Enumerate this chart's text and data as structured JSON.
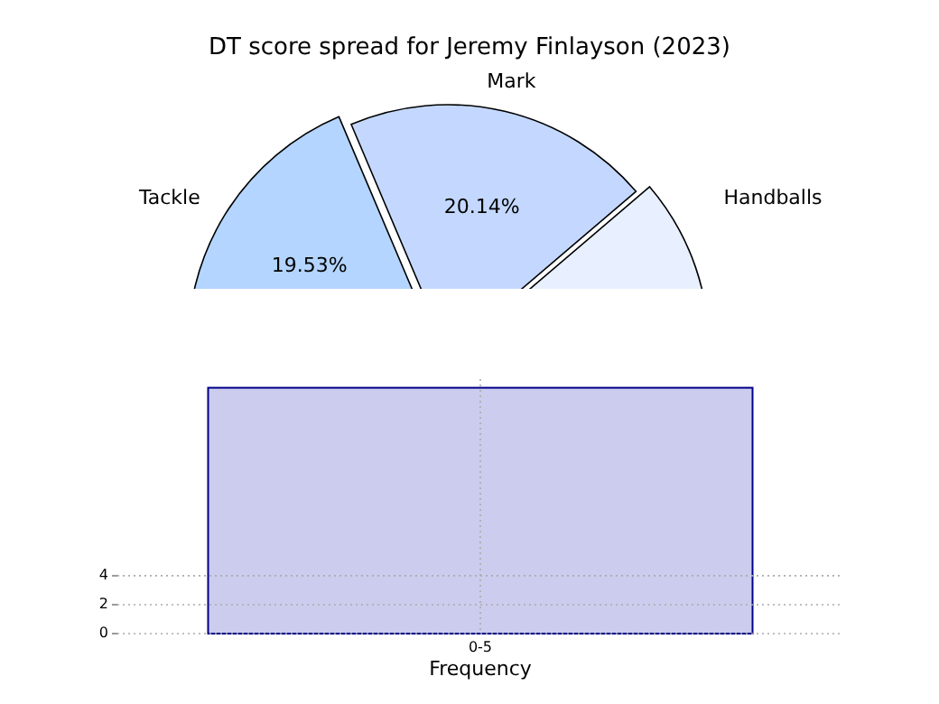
{
  "chart_data": [
    {
      "type": "pie",
      "title": "DT score spread for Jeremy Finlayson (2023)",
      "categories": [
        "Tackle",
        "Mark",
        "Handballs"
      ],
      "values": [
        19.53,
        20.14,
        12
      ],
      "colors": [
        "#b3d5ff",
        "#c4d8ff",
        "#e8f0ff"
      ],
      "value_labels": [
        "19.53%",
        "20.14%",
        null
      ]
    },
    {
      "type": "bar",
      "categories": [
        "0-5"
      ],
      "values": [
        17
      ],
      "color": "#ccccee",
      "xlabel": "Frequency",
      "ylim": [
        0,
        17.6
      ],
      "yticks": [
        0,
        2,
        4
      ],
      "grid": true
    }
  ]
}
